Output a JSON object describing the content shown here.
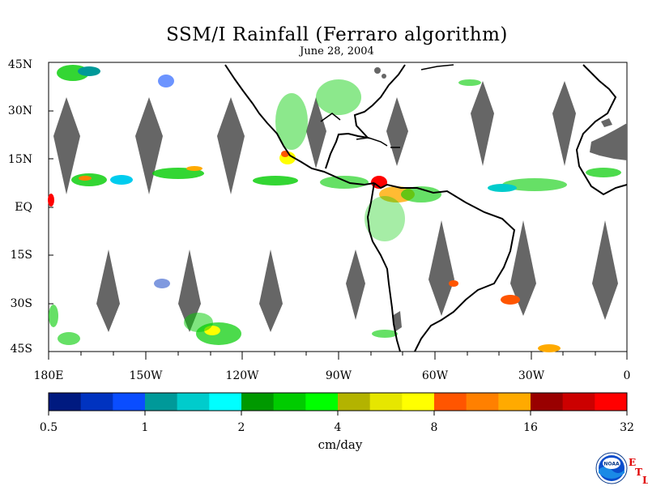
{
  "title": "SSM/I Rainfall (Ferraro algorithm)",
  "subtitle": "June 28, 2004",
  "lat_labels": [
    "45N",
    "30N",
    "15N",
    "EQ",
    "15S",
    "30S",
    "45S"
  ],
  "lon_labels": [
    "180E",
    "150W",
    "120W",
    "90W",
    "60W",
    "30W",
    "0"
  ],
  "colorbar": {
    "unit": "cm/day",
    "tick_labels": [
      "0.5",
      "1",
      "2",
      "4",
      "8",
      "16",
      "32"
    ],
    "colors": [
      "#001a80",
      "#0033c0",
      "#0a4dff",
      "#009999",
      "#00cccc",
      "#00ffff",
      "#009900",
      "#00cc00",
      "#00ff00",
      "#b3b300",
      "#e6e600",
      "#ffff00",
      "#ff5500",
      "#ff8000",
      "#ffaa00",
      "#990000",
      "#cc0000",
      "#ff0000"
    ]
  },
  "logo": {
    "name": "NOAA",
    "letters": [
      "E",
      "T",
      "L"
    ]
  },
  "colors": {
    "no_data": "#666666",
    "coast": "#000000"
  }
}
